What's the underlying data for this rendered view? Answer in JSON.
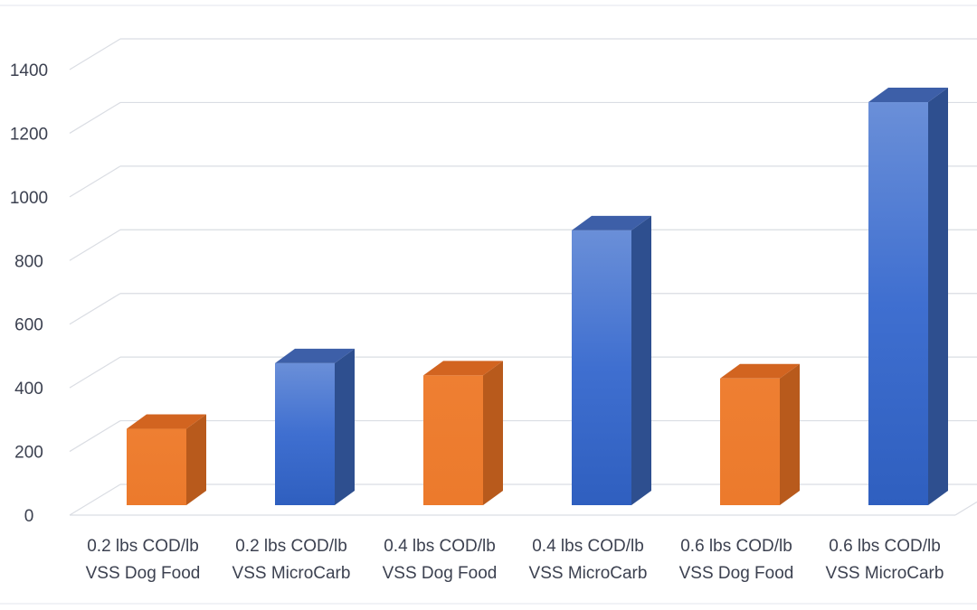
{
  "chart_data": {
    "type": "bar",
    "title": "",
    "xlabel": "",
    "ylabel": "",
    "ylim": [
      0,
      1400
    ],
    "yticks": [
      0,
      200,
      400,
      600,
      800,
      1000,
      1200,
      1400
    ],
    "grid": true,
    "legend": "none",
    "style": "3d-column",
    "categories": [
      [
        "0.2 lbs COD/lb",
        "VSS Dog Food"
      ],
      [
        "0.2 lbs COD/lb",
        "VSS MicroCarb"
      ],
      [
        "0.4 lbs COD/lb",
        "VSS Dog Food"
      ],
      [
        "0.4 lbs COD/lb",
        "VSS MicroCarb"
      ],
      [
        "0.6 lbs COD/lb",
        "VSS Dog Food"
      ],
      [
        "0.6 lbs COD/lb",
        "VSS MicroCarb"
      ]
    ],
    "values": [
      250,
      465,
      425,
      900,
      415,
      1320
    ],
    "bar_colors": [
      "#ED7D31",
      "#4472C4",
      "#ED7D31",
      "#4472C4",
      "#ED7D31",
      "#4472C4"
    ]
  }
}
